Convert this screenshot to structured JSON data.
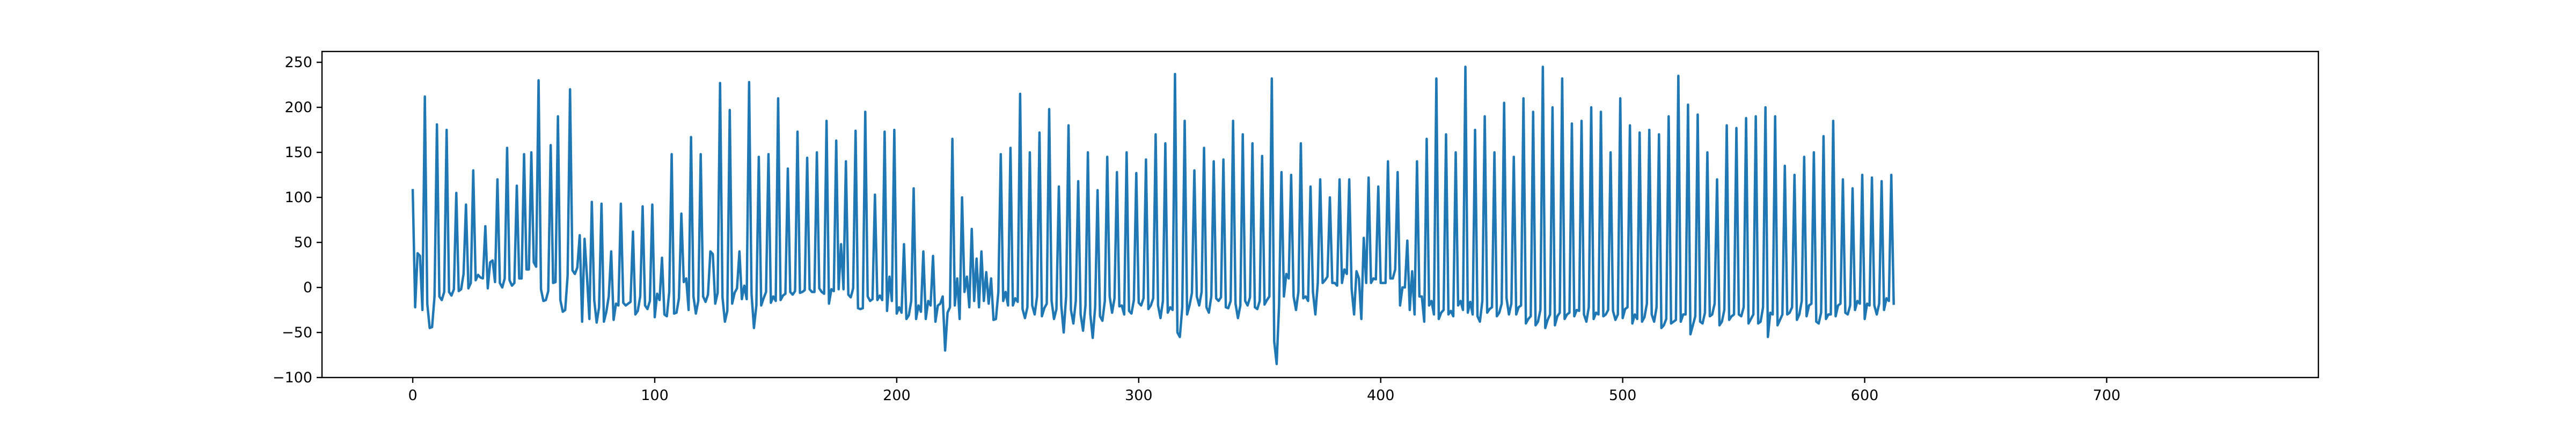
{
  "chart_data": {
    "type": "line",
    "title": "",
    "xlabel": "",
    "ylabel": "",
    "xlim": [
      -37.5,
      787.5
    ],
    "ylim": [
      -100,
      262
    ],
    "x_ticks": [
      0,
      100,
      200,
      300,
      400,
      500,
      600,
      700
    ],
    "x_tick_labels": [
      "0",
      "100",
      "200",
      "300",
      "400",
      "500",
      "600",
      "700"
    ],
    "y_ticks": [
      -100,
      -50,
      0,
      50,
      100,
      150,
      200,
      250
    ],
    "y_tick_labels": [
      "−100",
      "−50",
      "0",
      "50",
      "100",
      "150",
      "200",
      "250"
    ],
    "grid": false,
    "legend": "none",
    "series": [
      {
        "color": "#1f77b4",
        "x_start": 0,
        "x_step": 1,
        "values": [
          108,
          -22,
          38,
          35,
          -25,
          212,
          -18,
          -45,
          -44,
          -10,
          181,
          -10,
          -14,
          -5,
          175,
          -5,
          -9,
          -2,
          105,
          -4,
          -2,
          15,
          92,
          -1,
          5,
          130,
          8,
          14,
          11,
          10,
          68,
          -1,
          28,
          30,
          6,
          120,
          5,
          0,
          10,
          155,
          8,
          2,
          5,
          113,
          10,
          10,
          148,
          20,
          20,
          150,
          28,
          23,
          230,
          -2,
          -15,
          -14,
          -4,
          158,
          5,
          6,
          190,
          -14,
          -27,
          -25,
          13,
          220,
          19,
          15,
          22,
          58,
          -38,
          54,
          12,
          -35,
          95,
          -14,
          -39,
          -22,
          93,
          -38,
          -27,
          -10,
          40,
          -36,
          -18,
          -20,
          93,
          -17,
          -20,
          -18,
          -16,
          62,
          -30,
          -26,
          -10,
          90,
          -20,
          -24,
          -15,
          92,
          -33,
          -7,
          -14,
          33,
          -30,
          -32,
          -5,
          148,
          -29,
          -28,
          -12,
          82,
          6,
          10,
          -25,
          167,
          -10,
          -29,
          -15,
          148,
          -10,
          -16,
          -8,
          40,
          37,
          -18,
          -6,
          227,
          -11,
          -38,
          -26,
          197,
          -18,
          -6,
          -1,
          40,
          -13,
          2,
          -13,
          228,
          -7,
          -45,
          -20,
          145,
          -20,
          -12,
          -5,
          148,
          -17,
          -10,
          -15,
          210,
          -14,
          -9,
          -7,
          132,
          -5,
          -8,
          -4,
          173,
          -6,
          -5,
          -3,
          144,
          -2,
          -5,
          -5,
          150,
          -1,
          -5,
          -7,
          185,
          -18,
          -2,
          -4,
          163,
          -2,
          48,
          -2,
          140,
          -8,
          -11,
          -1,
          174,
          -23,
          -24,
          -23,
          195,
          -10,
          -15,
          -13,
          103,
          -14,
          -9,
          -14,
          173,
          -26,
          12,
          -15,
          175,
          -29,
          -22,
          -28,
          48,
          -35,
          -31,
          -15,
          110,
          -35,
          -20,
          -27,
          40,
          -35,
          -15,
          -20,
          35,
          -38,
          -20,
          -18,
          -10,
          -70,
          -28,
          -22,
          165,
          -20,
          10,
          -35,
          100,
          -5,
          12,
          -22,
          65,
          -15,
          32,
          -22,
          40,
          -15,
          17,
          -18,
          10,
          -36,
          -35,
          -5,
          148,
          -15,
          -5,
          -20,
          155,
          -20,
          -12,
          -16,
          215,
          -24,
          -34,
          -22,
          150,
          -20,
          -30,
          -10,
          172,
          -32,
          -23,
          -18,
          198,
          -15,
          -35,
          -24,
          112,
          -20,
          -50,
          -10,
          180,
          -25,
          -40,
          -15,
          118,
          -30,
          -48,
          -20,
          150,
          -30,
          -56,
          -22,
          108,
          -32,
          -37,
          -15,
          145,
          -10,
          -28,
          -12,
          128,
          -21,
          -20,
          -30,
          150,
          -26,
          -29,
          -14,
          127,
          -17,
          -20,
          -12,
          142,
          -24,
          -20,
          -12,
          170,
          -20,
          -34,
          -15,
          160,
          -28,
          -22,
          -25,
          237,
          -50,
          -55,
          -22,
          185,
          -30,
          -20,
          -6,
          130,
          -10,
          -20,
          -5,
          155,
          -22,
          -28,
          -10,
          140,
          -12,
          -15,
          -11,
          142,
          -22,
          -23,
          -15,
          185,
          -18,
          -34,
          -20,
          170,
          -15,
          -20,
          -11,
          160,
          -22,
          -24,
          -15,
          146,
          -19,
          -14,
          -10,
          232,
          -60,
          -85,
          -20,
          128,
          -10,
          15,
          10,
          125,
          -10,
          -25,
          -5,
          160,
          -12,
          -10,
          -15,
          112,
          -5,
          -30,
          5,
          120,
          5,
          8,
          12,
          100,
          5,
          5,
          2,
          120,
          5,
          20,
          15,
          120,
          -2,
          -30,
          18,
          10,
          -35,
          55,
          5,
          122,
          5,
          10,
          9,
          112,
          5,
          5,
          5,
          140,
          10,
          10,
          20,
          128,
          -20,
          0,
          0,
          52,
          -25,
          18,
          -30,
          140,
          -10,
          -10,
          -38,
          165,
          -20,
          -15,
          -30,
          232,
          -35,
          -28,
          -25,
          170,
          -30,
          -26,
          -32,
          150,
          -20,
          -15,
          -25,
          245,
          -28,
          -16,
          -30,
          175,
          -32,
          -38,
          -15,
          190,
          -28,
          -24,
          -22,
          150,
          -32,
          -28,
          -18,
          205,
          -12,
          -30,
          -18,
          145,
          -30,
          -22,
          -20,
          210,
          -40,
          -35,
          -32,
          195,
          -42,
          -38,
          -25,
          245,
          -45,
          -36,
          -30,
          200,
          -42,
          -32,
          -28,
          232,
          -35,
          -30,
          -28,
          182,
          -32,
          -25,
          -26,
          185,
          -30,
          -38,
          -22,
          200,
          -35,
          -28,
          -30,
          195,
          -32,
          -30,
          -25,
          150,
          -26,
          -36,
          -30,
          210,
          -34,
          -24,
          -22,
          180,
          -40,
          -30,
          -35,
          172,
          -38,
          -33,
          -18,
          175,
          -30,
          -38,
          -22,
          170,
          -45,
          -42,
          -35,
          190,
          -40,
          -38,
          -36,
          235,
          -38,
          -30,
          -30,
          203,
          -52,
          -42,
          -32,
          192,
          -38,
          -40,
          -28,
          150,
          -32,
          -30,
          -18,
          120,
          -42,
          -38,
          -25,
          180,
          -36,
          -32,
          -30,
          177,
          -30,
          -32,
          -22,
          188,
          -40,
          -35,
          -30,
          190,
          -40,
          -38,
          -22,
          200,
          -55,
          -28,
          -30,
          190,
          -42,
          -36,
          -30,
          135,
          -30,
          -28,
          -22,
          125,
          -36,
          -30,
          -15,
          145,
          -32,
          -20,
          -18,
          150,
          -38,
          -40,
          -28,
          168,
          -35,
          -30,
          -30,
          185,
          -32,
          -20,
          -18,
          120,
          -28,
          -30,
          -20,
          110,
          -25,
          -15,
          -18,
          125,
          -35,
          -18,
          -20,
          122,
          -20,
          -30,
          -18,
          118,
          -25,
          -12,
          -15,
          125,
          -18
        ]
      }
    ]
  }
}
